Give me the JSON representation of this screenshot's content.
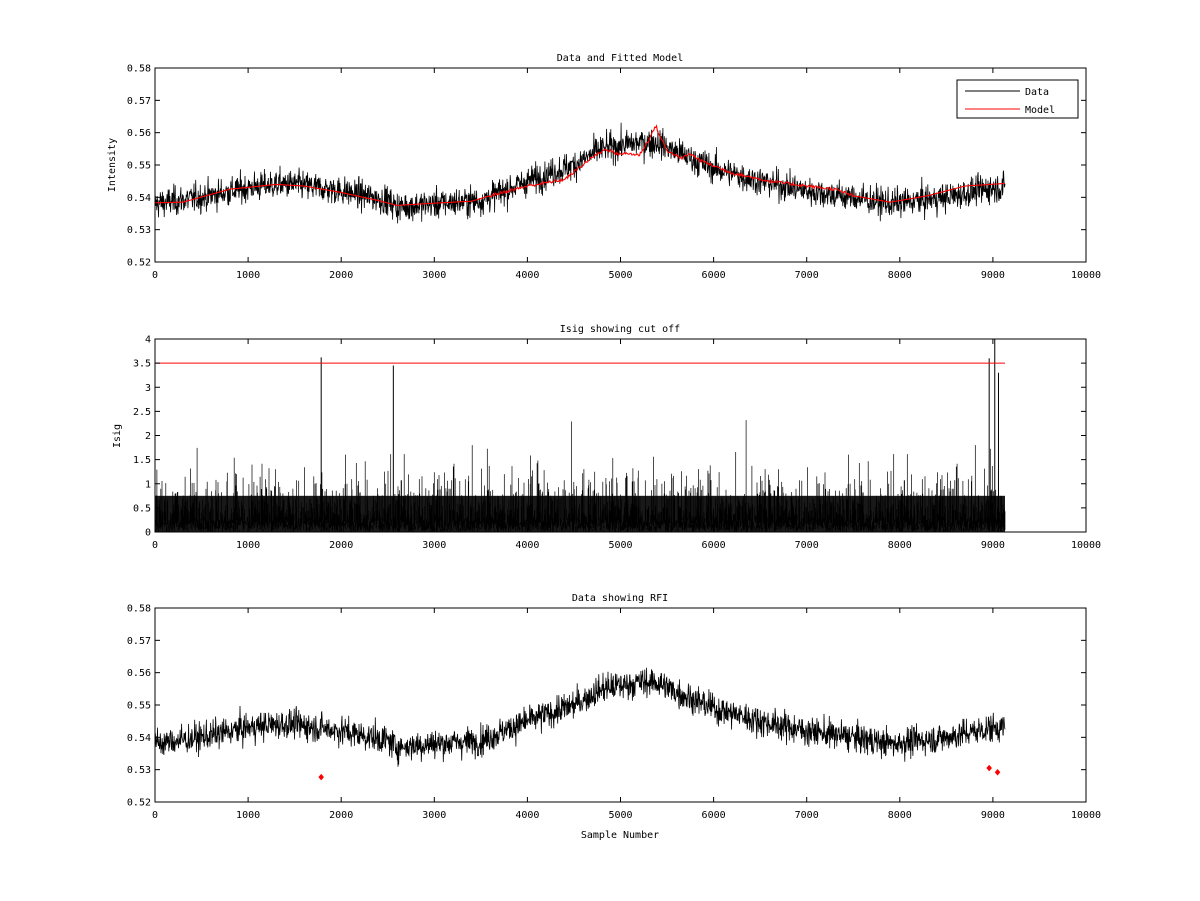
{
  "chart_data": [
    {
      "type": "line",
      "title": "Data and Fitted Model",
      "xlabel": "",
      "ylabel": "Intensity",
      "xlim": [
        0,
        10000
      ],
      "ylim": [
        0.52,
        0.58
      ],
      "xticks": [
        0,
        1000,
        2000,
        3000,
        4000,
        5000,
        6000,
        7000,
        8000,
        9000,
        10000
      ],
      "yticks": [
        0.52,
        0.53,
        0.54,
        0.55,
        0.56,
        0.57,
        0.58
      ],
      "grid": false,
      "legend": "top-right",
      "series": [
        {
          "name": "Data",
          "color": "#000000",
          "noise_amplitude": 0.004,
          "x": [
            0,
            500,
            1000,
            1300,
            1500,
            2000,
            2500,
            2600,
            3000,
            3500,
            4000,
            4500,
            4800,
            5000,
            5200,
            5400,
            5600,
            6000,
            6500,
            7000,
            7500,
            7900,
            8500,
            9000,
            9130
          ],
          "y": [
            0.538,
            0.54,
            0.543,
            0.544,
            0.544,
            0.542,
            0.539,
            0.537,
            0.538,
            0.539,
            0.545,
            0.55,
            0.555,
            0.556,
            0.557,
            0.557,
            0.554,
            0.549,
            0.545,
            0.542,
            0.54,
            0.538,
            0.54,
            0.543,
            0.543
          ]
        },
        {
          "name": "Model",
          "color": "#ff0000",
          "x": [
            0,
            300,
            800,
            1300,
            1600,
            2000,
            2400,
            2600,
            3000,
            3400,
            3600,
            4000,
            4400,
            4700,
            4850,
            4950,
            5100,
            5200,
            5300,
            5380,
            5420,
            5500,
            5650,
            5750,
            5850,
            6200,
            6600,
            7000,
            7300,
            7500,
            7900,
            8300,
            8700,
            9130
          ],
          "y": [
            0.5383,
            0.5385,
            0.5425,
            0.544,
            0.5435,
            0.5415,
            0.539,
            0.5375,
            0.5382,
            0.5388,
            0.5405,
            0.5435,
            0.5455,
            0.5525,
            0.555,
            0.5535,
            0.5535,
            0.553,
            0.5575,
            0.5622,
            0.559,
            0.5545,
            0.552,
            0.5535,
            0.5515,
            0.5475,
            0.545,
            0.5435,
            0.5425,
            0.5405,
            0.5385,
            0.5405,
            0.5435,
            0.5443
          ]
        }
      ]
    },
    {
      "type": "line",
      "title": "Isig showing cut off",
      "xlabel": "",
      "ylabel": "Isig",
      "xlim": [
        0,
        10000
      ],
      "ylim": [
        0,
        4
      ],
      "xticks": [
        0,
        1000,
        2000,
        3000,
        4000,
        5000,
        6000,
        7000,
        8000,
        9000,
        10000
      ],
      "yticks": [
        0,
        0.5,
        1,
        1.5,
        2,
        2.5,
        3,
        3.5,
        4
      ],
      "grid": false,
      "series": [
        {
          "color": "#000000",
          "x_range": [
            0,
            9130
          ],
          "typical_max": 2.0,
          "spikes": [
            [
              1785,
              3.62
            ],
            [
              2560,
              3.45
            ],
            [
              8960,
              3.6
            ],
            [
              9020,
              4.0
            ],
            [
              9060,
              3.3
            ]
          ]
        },
        {
          "color": "#ff0000",
          "x": [
            0,
            9130
          ],
          "y": [
            3.5,
            3.5
          ]
        }
      ]
    },
    {
      "type": "scatter",
      "title": "Data showing RFI",
      "xlabel": "Sample Number",
      "ylabel": "",
      "xlim": [
        0,
        10000
      ],
      "ylim": [
        0.52,
        0.58
      ],
      "xticks": [
        0,
        1000,
        2000,
        3000,
        4000,
        5000,
        6000,
        7000,
        8000,
        9000,
        10000
      ],
      "yticks": [
        0.52,
        0.53,
        0.54,
        0.55,
        0.56,
        0.57,
        0.58
      ],
      "grid": false,
      "series": [
        {
          "color": "#000000",
          "noise_amplitude": 0.004,
          "x": [
            0,
            500,
            1000,
            1300,
            1500,
            2000,
            2500,
            2600,
            3000,
            3500,
            4000,
            4500,
            4800,
            5000,
            5200,
            5400,
            5600,
            6000,
            6500,
            7000,
            7500,
            7900,
            8500,
            9000,
            9130
          ],
          "y": [
            0.538,
            0.54,
            0.543,
            0.544,
            0.544,
            0.542,
            0.539,
            0.537,
            0.538,
            0.539,
            0.545,
            0.55,
            0.555,
            0.556,
            0.557,
            0.557,
            0.554,
            0.549,
            0.545,
            0.542,
            0.54,
            0.538,
            0.54,
            0.543,
            0.543
          ]
        },
        {
          "color": "#ff0000",
          "marker": "diamond",
          "x": [
            1785,
            8960,
            9050
          ],
          "y": [
            0.5277,
            0.5305,
            0.5292
          ]
        }
      ]
    }
  ]
}
